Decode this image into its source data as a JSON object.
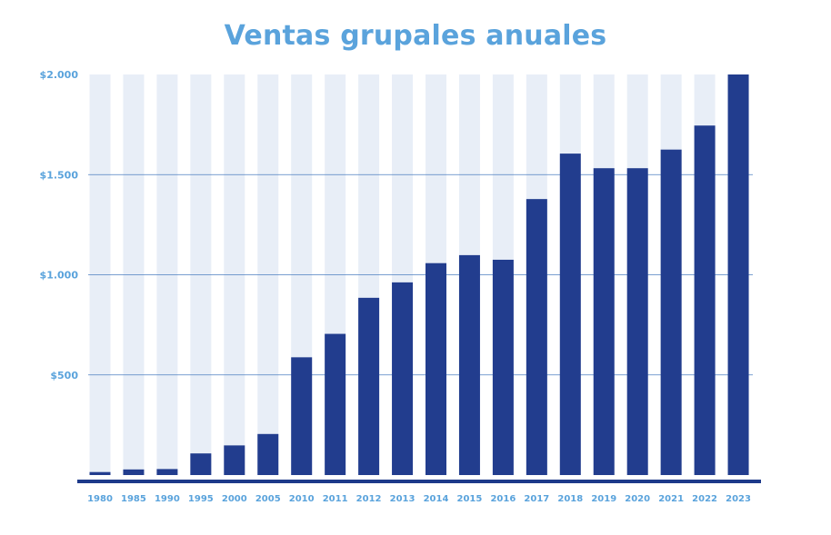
{
  "chart_data": {
    "type": "bar",
    "title": "Ventas grupales anuales",
    "xlabel": "",
    "ylabel": "",
    "ylim": [
      0,
      2000
    ],
    "y_ticks": [
      500,
      1000,
      1500,
      2000
    ],
    "y_tick_labels": [
      "$500",
      "$1.000",
      "$1.500",
      "$2.000"
    ],
    "grid": true,
    "categories": [
      "1980",
      "1985",
      "1990",
      "1995",
      "2000",
      "2005",
      "2010",
      "2011",
      "2012",
      "2013",
      "2014",
      "2015",
      "2016",
      "2017",
      "2018",
      "2019",
      "2020",
      "2021",
      "2022",
      "2023"
    ],
    "values": [
      15,
      28,
      30,
      108,
      148,
      205,
      588,
      705,
      885,
      962,
      1058,
      1098,
      1075,
      1378,
      1605,
      1532,
      1532,
      1625,
      1745,
      2000
    ]
  },
  "colors": {
    "bar": "#223d8e",
    "bar_track": "#e8eef7",
    "grid": "#4d7fc0",
    "baseline": "#1d3a8a",
    "text": "#5aa3dc"
  }
}
